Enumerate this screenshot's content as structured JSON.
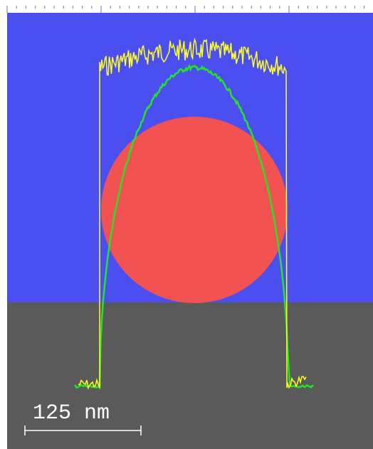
{
  "scale_bar": {
    "label": "125 nm"
  }
}
